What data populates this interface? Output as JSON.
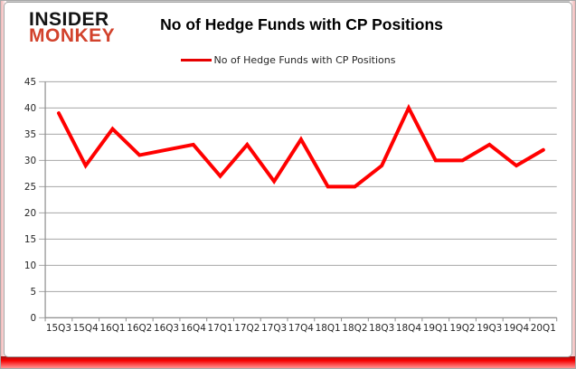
{
  "logo": {
    "line1": "INSIDER",
    "line2": "MONKEY"
  },
  "chart_data": {
    "type": "line",
    "title": "No of Hedge Funds with CP Positions",
    "legend_label": "No of Hedge Funds with CP Positions",
    "categories": [
      "15Q3",
      "15Q4",
      "16Q1",
      "16Q2",
      "16Q3",
      "16Q4",
      "17Q1",
      "17Q2",
      "17Q3",
      "17Q4",
      "18Q1",
      "18Q2",
      "18Q3",
      "18Q4",
      "19Q1",
      "19Q2",
      "19Q3",
      "19Q4",
      "20Q1"
    ],
    "values": [
      39,
      29,
      36,
      31,
      32,
      33,
      27,
      33,
      26,
      34,
      25,
      25,
      29,
      40,
      30,
      30,
      33,
      29,
      32
    ],
    "xlabel": "",
    "ylabel": "",
    "ylim": [
      0,
      45
    ],
    "ytick_step": 5,
    "grid": true,
    "legend_position": "top-center",
    "colors": {
      "line": "#ff0000",
      "legend_swatch": "#e60000",
      "grid": "#a6a6a6",
      "axis": "#8c8c8c",
      "tick_label": "#262626",
      "logo_accent": "#d2422c",
      "title": "#000000"
    }
  }
}
